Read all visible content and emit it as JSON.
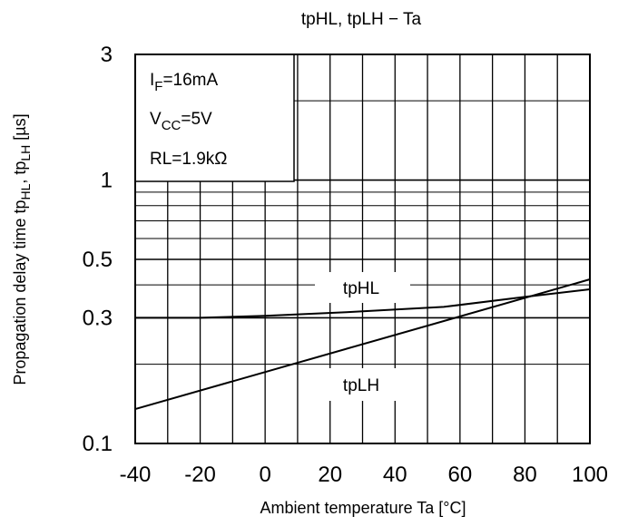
{
  "chart_data": {
    "type": "line",
    "title": "tpHL, tpLH − Ta",
    "xlabel": "Ambient temperature Ta [°C]",
    "ylabel": {
      "prefix": "Propagation delay time  tp",
      "sub1": "HL",
      "mid": ", tp",
      "sub2": "LH",
      "suffix": " [µs]"
    },
    "x_scale": "linear",
    "y_scale": "log",
    "xlim": [
      -40,
      100
    ],
    "ylim": [
      0.1,
      3
    ],
    "x_ticks": [
      -40,
      -20,
      0,
      20,
      40,
      60,
      80,
      100
    ],
    "x_tick_labels": [
      "-40",
      "-20",
      "0",
      "20",
      "40",
      "60",
      "80",
      "100"
    ],
    "y_ticks": [
      0.1,
      0.3,
      0.5,
      1,
      3
    ],
    "y_tick_labels": [
      "0.1",
      "0.3",
      "0.5",
      "1",
      "3"
    ],
    "grid": true,
    "series": [
      {
        "name": "tpHL",
        "x": [
          -40,
          -30,
          -20,
          0,
          25,
          55,
          80,
          100
        ],
        "y": [
          0.3,
          0.3,
          0.3,
          0.305,
          0.315,
          0.33,
          0.36,
          0.385
        ]
      },
      {
        "name": "tpLH",
        "x": [
          -40,
          100
        ],
        "y": [
          0.135,
          0.42
        ]
      }
    ],
    "annotations": [
      {
        "base": "I",
        "sub": "F",
        "rest": "=16mA"
      },
      {
        "base": "V",
        "sub": "CC",
        "rest": "=5V"
      },
      {
        "base": "RL=1.9kΩ",
        "sub": "",
        "rest": ""
      }
    ]
  }
}
